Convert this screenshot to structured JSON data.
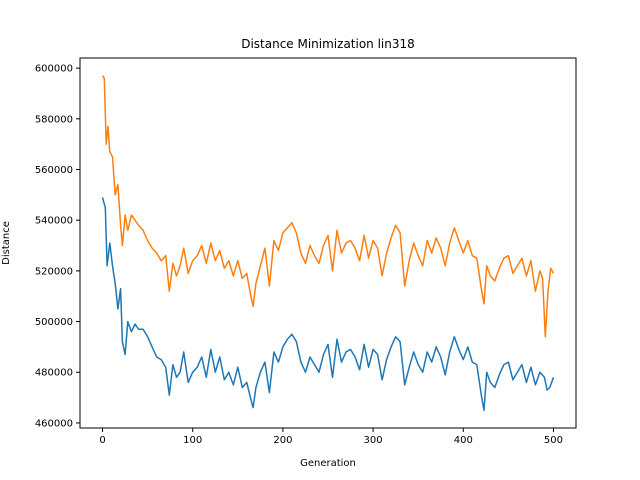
{
  "chart_data": {
    "type": "line",
    "title": "Distance Minimization lin318",
    "xlabel": "Generation",
    "ylabel": "Distance",
    "xlim": [
      -25,
      525
    ],
    "ylim": [
      458000,
      604000
    ],
    "xticks": [
      0,
      100,
      200,
      300,
      400,
      500
    ],
    "yticks": [
      460000,
      480000,
      500000,
      520000,
      540000,
      560000,
      580000,
      600000
    ],
    "grid": false,
    "legend": "none",
    "series": [
      {
        "color": "#1f77b4",
        "x": [
          0,
          3,
          5,
          8,
          11,
          14,
          17,
          20,
          22,
          25,
          28,
          32,
          36,
          40,
          45,
          50,
          55,
          60,
          65,
          70,
          74,
          78,
          82,
          86,
          90,
          95,
          100,
          105,
          110,
          115,
          120,
          125,
          130,
          135,
          140,
          145,
          150,
          155,
          160,
          164,
          167,
          170,
          175,
          180,
          185,
          190,
          195,
          200,
          205,
          210,
          215,
          220,
          225,
          230,
          235,
          240,
          245,
          250,
          255,
          260,
          265,
          270,
          275,
          280,
          285,
          290,
          295,
          300,
          305,
          310,
          315,
          320,
          325,
          330,
          335,
          340,
          345,
          350,
          355,
          360,
          365,
          370,
          375,
          380,
          385,
          390,
          395,
          400,
          405,
          410,
          415,
          420,
          423,
          426,
          430,
          435,
          440,
          445,
          450,
          455,
          460,
          465,
          470,
          475,
          480,
          485,
          490,
          493,
          496,
          500
        ],
        "y": [
          549000,
          545000,
          522000,
          531000,
          522000,
          515000,
          505000,
          513000,
          492000,
          487000,
          500000,
          496000,
          499000,
          497000,
          497000,
          494000,
          490000,
          486000,
          485000,
          482000,
          471000,
          483000,
          478000,
          480000,
          488000,
          476000,
          480000,
          482000,
          486000,
          478000,
          489000,
          480000,
          486000,
          477000,
          480000,
          475000,
          482000,
          474000,
          476000,
          470000,
          466000,
          474000,
          480000,
          484000,
          472000,
          488000,
          484000,
          490000,
          493000,
          495000,
          492000,
          484000,
          480000,
          486000,
          483000,
          480000,
          487000,
          491000,
          478000,
          493000,
          484000,
          488000,
          489000,
          486000,
          481000,
          491000,
          482000,
          489000,
          487000,
          477000,
          485000,
          490000,
          494000,
          492000,
          475000,
          482000,
          488000,
          483000,
          480000,
          488000,
          484000,
          490000,
          486000,
          479000,
          488000,
          494000,
          489000,
          485000,
          490000,
          484000,
          483000,
          471000,
          465000,
          480000,
          476000,
          474000,
          479000,
          483000,
          484000,
          477000,
          480000,
          483000,
          476000,
          482000,
          475000,
          480000,
          478000,
          473000,
          474000,
          478000
        ]
      },
      {
        "color": "#ff7f0e",
        "x": [
          0,
          2,
          4,
          6,
          8,
          11,
          14,
          17,
          20,
          22,
          25,
          28,
          32,
          36,
          40,
          45,
          50,
          55,
          60,
          65,
          70,
          74,
          78,
          82,
          86,
          90,
          95,
          100,
          105,
          110,
          115,
          120,
          125,
          130,
          135,
          140,
          145,
          150,
          155,
          160,
          164,
          167,
          170,
          175,
          180,
          185,
          190,
          195,
          200,
          205,
          210,
          215,
          220,
          225,
          230,
          235,
          240,
          245,
          250,
          255,
          260,
          265,
          270,
          275,
          280,
          285,
          290,
          295,
          300,
          305,
          310,
          315,
          320,
          325,
          330,
          335,
          340,
          345,
          350,
          355,
          360,
          365,
          370,
          375,
          380,
          385,
          390,
          395,
          400,
          405,
          410,
          415,
          420,
          423,
          426,
          430,
          435,
          440,
          445,
          450,
          455,
          460,
          465,
          470,
          475,
          480,
          485,
          488,
          491,
          494,
          497,
          500
        ],
        "y": [
          597000,
          596000,
          570000,
          577000,
          567000,
          565000,
          550000,
          554000,
          538000,
          530000,
          542000,
          536000,
          542000,
          540000,
          538000,
          536000,
          532000,
          529000,
          527000,
          524000,
          526000,
          512000,
          523000,
          518000,
          522000,
          529000,
          519000,
          524000,
          526000,
          530000,
          523000,
          531000,
          524000,
          528000,
          521000,
          524000,
          518000,
          524000,
          517000,
          519000,
          511000,
          506000,
          515000,
          522000,
          529000,
          514000,
          532000,
          528000,
          535000,
          537000,
          539000,
          535000,
          527000,
          523000,
          530000,
          526000,
          523000,
          530000,
          534000,
          520000,
          536000,
          527000,
          531000,
          532000,
          529000,
          524000,
          534000,
          525000,
          532000,
          529000,
          518000,
          527000,
          533000,
          538000,
          535000,
          514000,
          524000,
          531000,
          526000,
          522000,
          532000,
          527000,
          533000,
          529000,
          522000,
          531000,
          537000,
          532000,
          527000,
          532000,
          526000,
          525000,
          513000,
          507000,
          522000,
          518000,
          516000,
          521000,
          525000,
          526000,
          519000,
          522000,
          525000,
          518000,
          524000,
          512000,
          520000,
          517000,
          494000,
          512000,
          521000,
          519000
        ]
      }
    ]
  }
}
